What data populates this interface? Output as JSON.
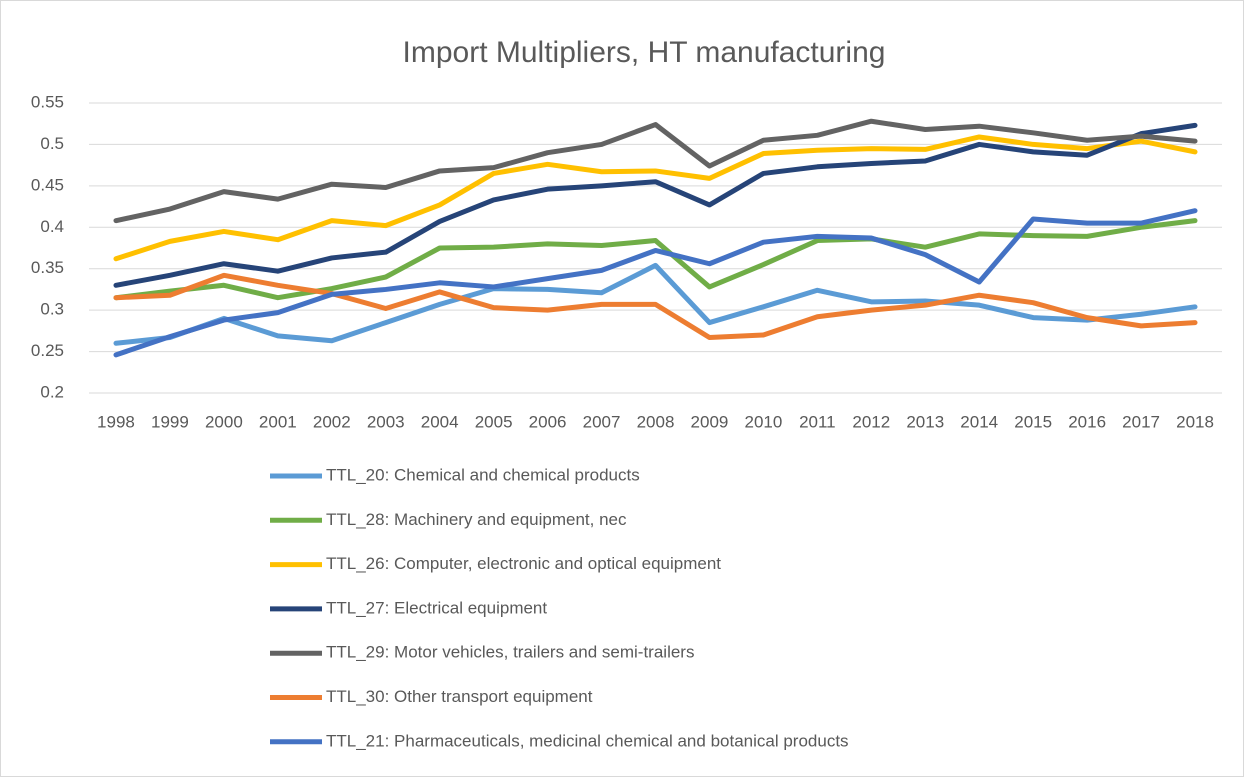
{
  "chart_data": {
    "type": "line",
    "title": "Import Multipliers, HT manufacturing",
    "categories": [
      "1998",
      "1999",
      "2000",
      "2001",
      "2002",
      "2003",
      "2004",
      "2005",
      "2006",
      "2007",
      "2008",
      "2009",
      "2010",
      "2011",
      "2012",
      "2013",
      "2014",
      "2015",
      "2016",
      "2017",
      "2018"
    ],
    "series": [
      {
        "name": "TTL_20: Chemical and chemical products",
        "color": "#5b9bd5",
        "values": [
          0.26,
          0.267,
          0.29,
          0.269,
          0.263,
          0.285,
          0.307,
          0.326,
          0.325,
          0.321,
          0.354,
          0.285,
          0.304,
          0.324,
          0.31,
          0.311,
          0.306,
          0.291,
          0.288,
          0.295,
          0.304
        ]
      },
      {
        "name": "TTL_28: Machinery and equipment, nec",
        "color": "#70ad47",
        "values": [
          0.315,
          0.323,
          0.33,
          0.315,
          0.326,
          0.34,
          0.375,
          0.376,
          0.38,
          0.378,
          0.384,
          0.328,
          0.355,
          0.384,
          0.386,
          0.376,
          0.392,
          0.39,
          0.389,
          0.4,
          0.408
        ]
      },
      {
        "name": "TTL_26: Computer, electronic and optical equipment",
        "color": "#ffc000",
        "values": [
          0.362,
          0.383,
          0.395,
          0.385,
          0.408,
          0.402,
          0.427,
          0.465,
          0.476,
          0.467,
          0.468,
          0.459,
          0.489,
          0.493,
          0.495,
          0.494,
          0.509,
          0.5,
          0.495,
          0.504,
          0.491
        ]
      },
      {
        "name": "TTL_27: Electrical equipment",
        "color": "#264478",
        "values": [
          0.33,
          0.342,
          0.356,
          0.347,
          0.363,
          0.37,
          0.407,
          0.433,
          0.446,
          0.45,
          0.455,
          0.427,
          0.465,
          0.473,
          0.477,
          0.48,
          0.5,
          0.491,
          0.487,
          0.513,
          0.523
        ]
      },
      {
        "name": "TTL_29: Motor vehicles, trailers and semi-trailers",
        "color": "#636363",
        "values": [
          0.408,
          0.422,
          0.443,
          0.434,
          0.452,
          0.448,
          0.468,
          0.472,
          0.49,
          0.5,
          0.524,
          0.474,
          0.505,
          0.511,
          0.528,
          0.518,
          0.522,
          0.514,
          0.505,
          0.51,
          0.504
        ]
      },
      {
        "name": "TTL_30: Other transport equipment",
        "color": "#ed7d31",
        "values": [
          0.315,
          0.318,
          0.342,
          0.33,
          0.32,
          0.302,
          0.322,
          0.303,
          0.3,
          0.307,
          0.307,
          0.267,
          0.27,
          0.292,
          0.3,
          0.306,
          0.318,
          0.309,
          0.291,
          0.281,
          0.285
        ]
      },
      {
        "name": "TTL_21: Pharmaceuticals, medicinal chemical and botanical products",
        "color": "#4472c4",
        "values": [
          0.246,
          0.268,
          0.288,
          0.297,
          0.319,
          0.325,
          0.333,
          0.328,
          0.338,
          0.348,
          0.372,
          0.356,
          0.382,
          0.389,
          0.387,
          0.367,
          0.334,
          0.41,
          0.405,
          0.405,
          0.42
        ]
      }
    ],
    "ylim": [
      0.2,
      0.55
    ],
    "yticks": [
      0.2,
      0.25,
      0.3,
      0.35,
      0.4,
      0.45,
      0.5,
      0.55
    ],
    "grid": true,
    "legend": "bottom"
  }
}
